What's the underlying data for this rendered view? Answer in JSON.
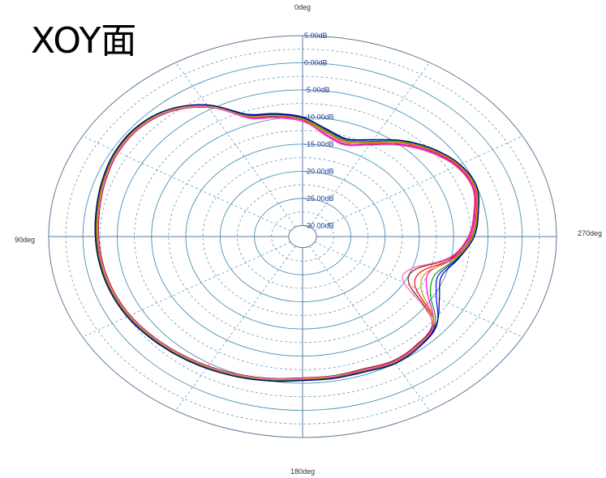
{
  "chart_data": {
    "type": "polar",
    "title": "XOY面",
    "angle_labels": [
      "0deg",
      "90deg",
      "180deg",
      "270deg"
    ],
    "angle_direction": "counter-clockwise",
    "zero_at": "top",
    "radial_unit": "dB",
    "radial_range": [
      -30,
      5
    ],
    "ring_labels": [
      "5.00dB",
      "0.00dB",
      "-5.00dB",
      "-10.00dB",
      "-15.00dB",
      "-20.00dB",
      "-25.00dB",
      "-30.00dB"
    ],
    "ring_values": [
      5,
      0,
      -5,
      -10,
      -15,
      -20,
      -25,
      -30
    ],
    "minor_ring_values": [
      2.5,
      -2.5,
      -7.5,
      -12.5,
      -17.5,
      -22.5,
      -27.5
    ],
    "grid": true,
    "legend": "none",
    "angles_deg": [
      0,
      10,
      20,
      30,
      40,
      50,
      60,
      70,
      80,
      90,
      100,
      110,
      120,
      130,
      140,
      150,
      160,
      170,
      180,
      190,
      200,
      210,
      220,
      230,
      240,
      250,
      260,
      270,
      280,
      290,
      300,
      310,
      320,
      330,
      340,
      350
    ],
    "series": [
      {
        "color": "#0000ff",
        "values": [
          -10,
          -9,
          -8,
          -4,
          -1.5,
          -0.5,
          -0.5,
          -1,
          -1.5,
          -1.8,
          -2,
          -2.2,
          -2.5,
          -3,
          -3.5,
          -4,
          -4.5,
          -5,
          -5.5,
          -5.5,
          -5.5,
          -5,
          -5.5,
          -6.5,
          -9.5,
          -11,
          -9,
          -7,
          -6,
          -5,
          -5.5,
          -7,
          -9,
          -11.5,
          -13,
          -12
        ]
      },
      {
        "color": "#ff0000",
        "values": [
          -10.5,
          -9.5,
          -8.5,
          -4.2,
          -1.8,
          -0.7,
          -0.7,
          -1.2,
          -1.7,
          -2,
          -2.2,
          -2.4,
          -2.7,
          -3.2,
          -3.7,
          -4.2,
          -4.7,
          -5.2,
          -5.7,
          -5.7,
          -5.8,
          -5.3,
          -5.8,
          -7,
          -13,
          -13.5,
          -9.6,
          -7.4,
          -6.3,
          -5.3,
          -5.8,
          -7.4,
          -9.5,
          -12,
          -13.5,
          -12.5
        ]
      },
      {
        "color": "#00a000",
        "values": [
          -10.2,
          -9.2,
          -8.2,
          -4.1,
          -1.6,
          -0.6,
          -0.6,
          -1.1,
          -1.6,
          -1.9,
          -2.1,
          -2.3,
          -2.6,
          -3.1,
          -3.6,
          -4.1,
          -4.6,
          -5.1,
          -5.6,
          -5.6,
          -5.6,
          -5.1,
          -5.6,
          -6.8,
          -10.5,
          -11.5,
          -9.2,
          -7.2,
          -6.1,
          -5.1,
          -5.6,
          -7.2,
          -9.2,
          -11.8,
          -13.2,
          -12.2
        ]
      },
      {
        "color": "#ff00ff",
        "values": [
          -10.8,
          -9.8,
          -8.8,
          -4.4,
          -1.9,
          -0.9,
          -0.9,
          -1.4,
          -1.9,
          -2.2,
          -2.4,
          -2.6,
          -2.9,
          -3.4,
          -3.9,
          -4.4,
          -4.9,
          -5.4,
          -5.9,
          -5.9,
          -6,
          -5.5,
          -6,
          -7.2,
          -11,
          -12.5,
          -9.8,
          -7.6,
          -6.5,
          -5.5,
          -6,
          -7.6,
          -9.8,
          -12.3,
          -13.8,
          -12.8
        ]
      },
      {
        "color": "#c8a000",
        "values": [
          -10.4,
          -9.4,
          -8.4,
          -4.3,
          -1.7,
          -0.8,
          -0.8,
          -1.3,
          -1.8,
          -2.1,
          -2.3,
          -2.5,
          -2.8,
          -3.3,
          -3.8,
          -4.3,
          -4.8,
          -5.3,
          -5.8,
          -5.8,
          -5.9,
          -5.4,
          -5.9,
          -7.1,
          -12,
          -12.8,
          -9.4,
          -7.3,
          -6.2,
          -5.2,
          -5.7,
          -7.3,
          -9.4,
          -12.1,
          -13.4,
          -12.4
        ]
      },
      {
        "color": "#8b1a1a",
        "values": [
          -10.6,
          -9.6,
          -8.6,
          -4.5,
          -2,
          -1,
          -1,
          -1.5,
          -2,
          -2.3,
          -2.5,
          -2.7,
          -3,
          -3.5,
          -4,
          -4.5,
          -5,
          -5.5,
          -6,
          -6,
          -6.1,
          -5.6,
          -6.1,
          -7.3,
          -14,
          -14.5,
          -10,
          -7.8,
          -6.6,
          -5.6,
          -6.1,
          -7.8,
          -10,
          -12.5,
          -14,
          -13
        ]
      },
      {
        "color": "#000080",
        "values": [
          -10.1,
          -9.1,
          -8.1,
          -4,
          -1.5,
          -0.5,
          -0.5,
          -1,
          -1.5,
          -1.8,
          -2,
          -2.2,
          -2.5,
          -3,
          -3.5,
          -4,
          -4.5,
          -5,
          -5.5,
          -5.5,
          -5.5,
          -5,
          -5.5,
          -6.6,
          -9,
          -10.5,
          -8.9,
          -7,
          -6,
          -5,
          -5.5,
          -7,
          -9,
          -11.4,
          -12.9,
          -11.9
        ]
      },
      {
        "color": "#ff66cc",
        "values": [
          -10.7,
          -9.7,
          -8.7,
          -4.4,
          -1.9,
          -0.9,
          -0.9,
          -1.4,
          -1.9,
          -2.2,
          -2.4,
          -2.6,
          -2.9,
          -3.4,
          -3.9,
          -4.4,
          -4.9,
          -5.4,
          -5.9,
          -5.9,
          -5.9,
          -5.4,
          -5.9,
          -7.2,
          -15,
          -15,
          -10.2,
          -7.9,
          -6.7,
          -5.7,
          -6.2,
          -7.9,
          -10.1,
          -12.6,
          -14.1,
          -13.1
        ]
      }
    ]
  }
}
